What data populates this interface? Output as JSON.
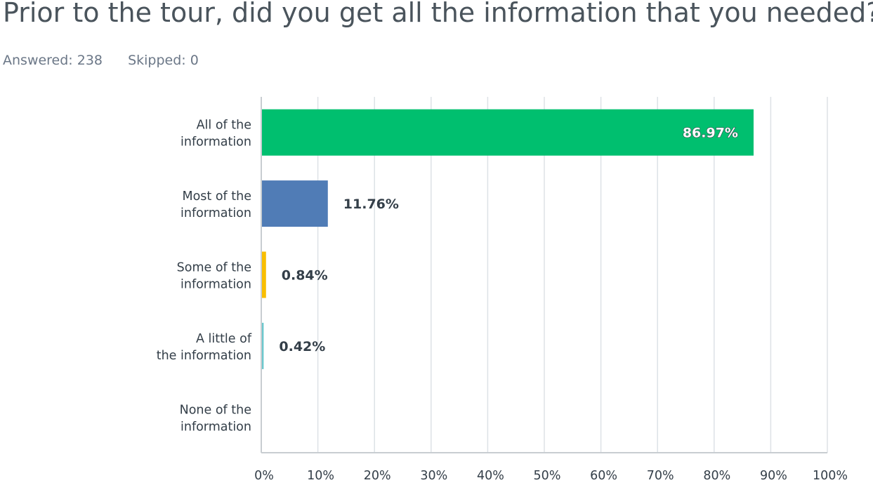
{
  "question": {
    "title": "Prior to the tour, did you get all the information that you needed?",
    "answered_label": "Answered: 238",
    "skipped_label": "Skipped: 0"
  },
  "colors": {
    "gridline": "#dde2e6",
    "axis": "#c8cdd1",
    "text": "#333e48"
  },
  "chart_data": {
    "type": "bar",
    "orientation": "horizontal",
    "categories": [
      [
        "All of the",
        "information"
      ],
      [
        "Most of the",
        "information"
      ],
      [
        "Some of the",
        "information"
      ],
      [
        "A little of",
        "the information"
      ],
      [
        "None of the",
        "information"
      ]
    ],
    "values": [
      86.97,
      11.76,
      0.84,
      0.42,
      0
    ],
    "value_labels": [
      "86.97%",
      "11.76%",
      "0.84%",
      "0.42%",
      ""
    ],
    "bar_colors": [
      "#00bf6f",
      "#507cb6",
      "#f9be00",
      "#6bc8cd",
      "#ff8b4f"
    ],
    "xlim": [
      0,
      100
    ],
    "xticks": [
      0,
      10,
      20,
      30,
      40,
      50,
      60,
      70,
      80,
      90,
      100
    ],
    "xtick_labels": [
      "0%",
      "10%",
      "20%",
      "30%",
      "40%",
      "50%",
      "60%",
      "70%",
      "80%",
      "90%",
      "100%"
    ],
    "grid": true
  }
}
